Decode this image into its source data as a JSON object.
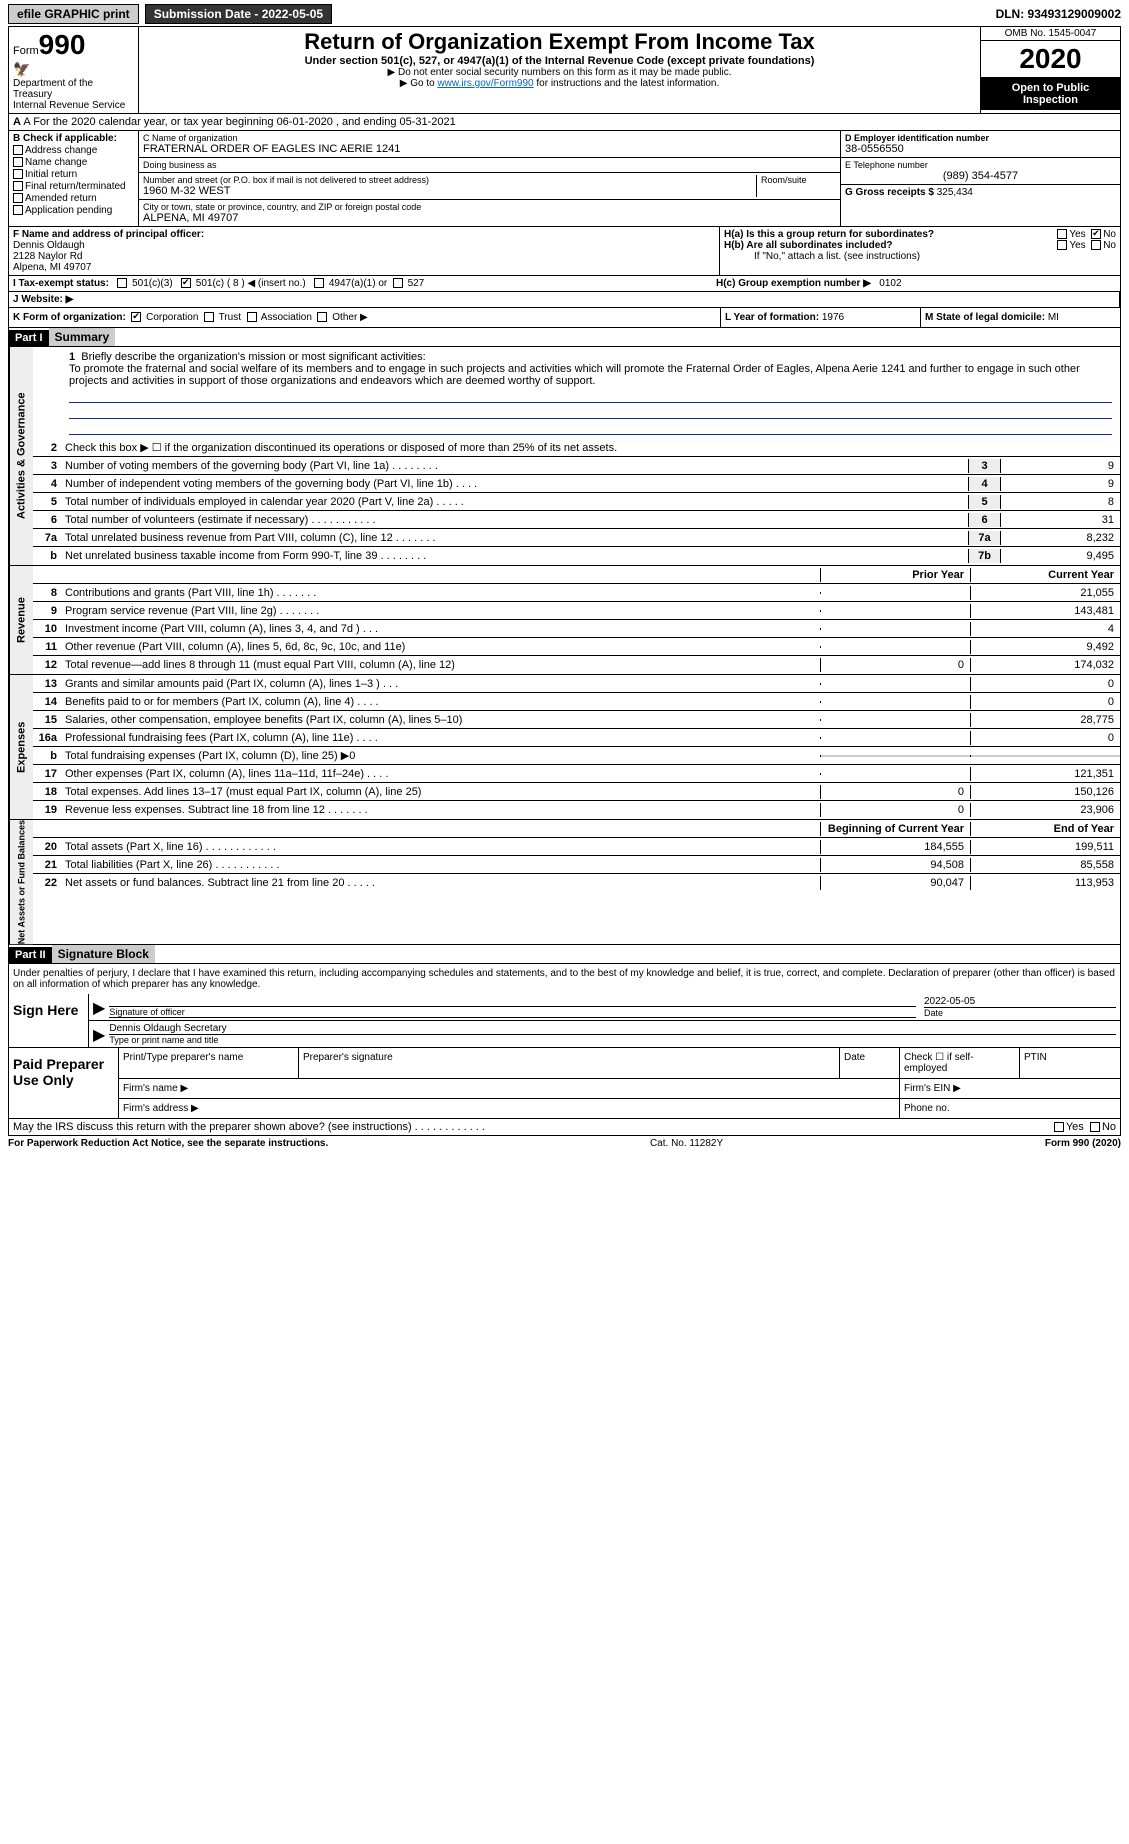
{
  "topbar": {
    "efile": "efile GRAPHIC print",
    "submission_label": "Submission Date - 2022-05-05",
    "dln_label": "DLN: 93493129009002"
  },
  "header": {
    "form_word": "Form",
    "form_num": "990",
    "dept": "Department of the Treasury\nInternal Revenue Service",
    "title": "Return of Organization Exempt From Income Tax",
    "subtitle": "Under section 501(c), 527, or 4947(a)(1) of the Internal Revenue Code (except private foundations)",
    "note1": "▶ Do not enter social security numbers on this form as it may be made public.",
    "note2_pre": "▶ Go to ",
    "note2_link": "www.irs.gov/Form990",
    "note2_post": " for instructions and the latest information.",
    "omb": "OMB No. 1545-0047",
    "year": "2020",
    "inspect": "Open to Public Inspection"
  },
  "row_a": {
    "text": "A For the 2020 calendar year, or tax year beginning 06-01-2020    , and ending 05-31-2021"
  },
  "col_b": {
    "title": "B Check if applicable:",
    "items": [
      "Address change",
      "Name change",
      "Initial return",
      "Final return/terminated",
      "Amended return",
      "Application pending"
    ]
  },
  "col_c": {
    "name_lbl": "C Name of organization",
    "name": "FRATERNAL ORDER OF EAGLES INC AERIE 1241",
    "dba_lbl": "Doing business as",
    "dba": "",
    "addr_lbl": "Number and street (or P.O. box if mail is not delivered to street address)",
    "addr": "1960 M-32 WEST",
    "room_lbl": "Room/suite",
    "city_lbl": "City or town, state or province, country, and ZIP or foreign postal code",
    "city": "ALPENA, MI  49707"
  },
  "col_d": {
    "ein_lbl": "D Employer identification number",
    "ein": "38-0556550",
    "tel_lbl": "E Telephone number",
    "tel": "(989) 354-4577",
    "gross_lbl": "G Gross receipts $",
    "gross": "325,434"
  },
  "col_f": {
    "lbl": "F Name and address of principal officer:",
    "name": "Dennis Oldaugh",
    "addr1": "2128 Naylor Rd",
    "addr2": "Alpena, MI  49707"
  },
  "col_h": {
    "ha": "H(a)  Is this a group return for subordinates?",
    "hb": "H(b)  Are all subordinates included?",
    "hb_note": "If \"No,\" attach a list. (see instructions)",
    "hc": "H(c)  Group exemption number ▶",
    "hc_val": "0102",
    "yes": "Yes",
    "no": "No"
  },
  "row_i": {
    "lbl": "I   Tax-exempt status:",
    "opt1": "501(c)(3)",
    "opt2": "501(c) ( 8 ) ◀ (insert no.)",
    "opt3": "4947(a)(1) or",
    "opt4": "527"
  },
  "row_j": {
    "lbl": "J   Website: ▶"
  },
  "row_k": {
    "lbl": "K Form of organization:",
    "opts": [
      "Corporation",
      "Trust",
      "Association",
      "Other ▶"
    ]
  },
  "row_l": {
    "lbl": "L Year of formation:",
    "val": "1976"
  },
  "row_m": {
    "lbl": "M State of legal domicile:",
    "val": "MI"
  },
  "part1": {
    "hdr": "Part I",
    "title": "Summary",
    "line1": "Briefly describe the organization's mission or most significant activities:",
    "mission": "To promote the fraternal and social welfare of its members and to engage in such projects and activities which will promote the Fraternal Order of Eagles, Alpena Aerie 1241 and further to engage in such other projects and activities in support of those organizations and endeavors which are deemed worthy of support.",
    "line2": "Check this box ▶ ☐ if the organization discontinued its operations or disposed of more than 25% of its net assets.",
    "gov_tab": "Activities & Governance",
    "rev_tab": "Revenue",
    "exp_tab": "Expenses",
    "net_tab": "Net Assets or Fund Balances",
    "lines_gov": [
      {
        "n": "3",
        "t": "Number of voting members of the governing body (Part VI, line 1a)   .    .    .    .    .    .    .    .",
        "b": "3",
        "v": "9"
      },
      {
        "n": "4",
        "t": "Number of independent voting members of the governing body (Part VI, line 1b)   .    .    .    .",
        "b": "4",
        "v": "9"
      },
      {
        "n": "5",
        "t": "Total number of individuals employed in calendar year 2020 (Part V, line 2a)   .    .    .    .    .",
        "b": "5",
        "v": "8"
      },
      {
        "n": "6",
        "t": "Total number of volunteers (estimate if necessary)   .    .    .    .    .    .    .    .    .    .    .",
        "b": "6",
        "v": "31"
      },
      {
        "n": "7a",
        "t": "Total unrelated business revenue from Part VIII, column (C), line 12   .    .    .    .    .    .    .",
        "b": "7a",
        "v": "8,232"
      },
      {
        "n": "b",
        "t": "Net unrelated business taxable income from Form 990-T, line 39   .    .    .    .    .    .    .    .",
        "b": "7b",
        "v": "9,495"
      }
    ],
    "col_prior": "Prior Year",
    "col_current": "Current Year",
    "lines_rev": [
      {
        "n": "8",
        "t": "Contributions and grants (Part VIII, line 1h)   .    .    .    .    .    .    .",
        "p": "",
        "c": "21,055"
      },
      {
        "n": "9",
        "t": "Program service revenue (Part VIII, line 2g)   .    .    .    .    .    .    .",
        "p": "",
        "c": "143,481"
      },
      {
        "n": "10",
        "t": "Investment income (Part VIII, column (A), lines 3, 4, and 7d )   .    .    .",
        "p": "",
        "c": "4"
      },
      {
        "n": "11",
        "t": "Other revenue (Part VIII, column (A), lines 5, 6d, 8c, 9c, 10c, and 11e)",
        "p": "",
        "c": "9,492"
      },
      {
        "n": "12",
        "t": "Total revenue—add lines 8 through 11 (must equal Part VIII, column (A), line 12)",
        "p": "0",
        "c": "174,032"
      }
    ],
    "lines_exp": [
      {
        "n": "13",
        "t": "Grants and similar amounts paid (Part IX, column (A), lines 1–3 )   .    .    .",
        "p": "",
        "c": "0"
      },
      {
        "n": "14",
        "t": "Benefits paid to or for members (Part IX, column (A), line 4)   .    .    .    .",
        "p": "",
        "c": "0"
      },
      {
        "n": "15",
        "t": "Salaries, other compensation, employee benefits (Part IX, column (A), lines 5–10)",
        "p": "",
        "c": "28,775"
      },
      {
        "n": "16a",
        "t": "Professional fundraising fees (Part IX, column (A), line 11e)   .    .    .    .",
        "p": "",
        "c": "0"
      },
      {
        "n": "b",
        "t": "Total fundraising expenses (Part IX, column (D), line 25) ▶0",
        "p": "grey",
        "c": "grey"
      },
      {
        "n": "17",
        "t": "Other expenses (Part IX, column (A), lines 11a–11d, 11f–24e)   .    .    .    .",
        "p": "",
        "c": "121,351"
      },
      {
        "n": "18",
        "t": "Total expenses. Add lines 13–17 (must equal Part IX, column (A), line 25)",
        "p": "0",
        "c": "150,126"
      },
      {
        "n": "19",
        "t": "Revenue less expenses. Subtract line 18 from line 12   .    .    .    .    .    .    .",
        "p": "0",
        "c": "23,906"
      }
    ],
    "col_begin": "Beginning of Current Year",
    "col_end": "End of Year",
    "lines_net": [
      {
        "n": "20",
        "t": "Total assets (Part X, line 16)   .    .    .    .    .    .    .    .    .    .    .    .",
        "p": "184,555",
        "c": "199,511"
      },
      {
        "n": "21",
        "t": "Total liabilities (Part X, line 26)   .    .    .    .    .    .    .    .    .    .    .",
        "p": "94,508",
        "c": "85,558"
      },
      {
        "n": "22",
        "t": "Net assets or fund balances. Subtract line 21 from line 20   .    .    .    .    .",
        "p": "90,047",
        "c": "113,953"
      }
    ]
  },
  "part2": {
    "hdr": "Part II",
    "title": "Signature Block",
    "decl": "Under penalties of perjury, I declare that I have examined this return, including accompanying schedules and statements, and to the best of my knowledge and belief, it is true, correct, and complete. Declaration of preparer (other than officer) is based on all information of which preparer has any knowledge.",
    "sign_here": "Sign Here",
    "sig_officer": "Signature of officer",
    "sig_date": "2022-05-05",
    "date_lbl": "Date",
    "sig_name": "Dennis Oldaugh  Secretary",
    "sig_name_lbl": "Type or print name and title",
    "paid": "Paid Preparer Use Only",
    "prep_name_lbl": "Print/Type preparer's name",
    "prep_sig_lbl": "Preparer's signature",
    "prep_date_lbl": "Date",
    "prep_check": "Check ☐ if self-employed",
    "ptin": "PTIN",
    "firm_name": "Firm's name   ▶",
    "firm_ein": "Firm's EIN ▶",
    "firm_addr": "Firm's address ▶",
    "phone": "Phone no.",
    "may_discuss": "May the IRS discuss this return with the preparer shown above? (see instructions)   .    .    .    .    .    .    .    .    .    .    .    .",
    "yes": "Yes",
    "no": "No"
  },
  "footer": {
    "pra": "For Paperwork Reduction Act Notice, see the separate instructions.",
    "cat": "Cat. No. 11282Y",
    "form": "Form 990 (2020)"
  },
  "colors": {
    "link": "#0066cc",
    "rule": "#003399"
  }
}
